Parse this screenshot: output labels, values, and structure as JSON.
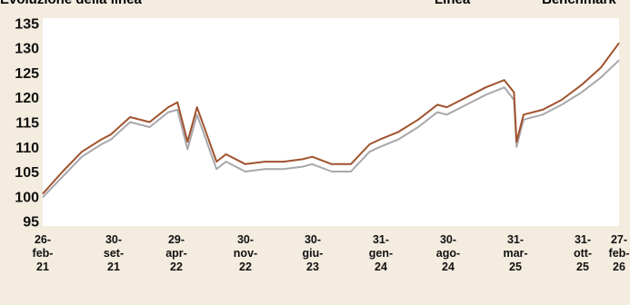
{
  "title": "Evoluzione della linea",
  "chart_data": {
    "type": "line",
    "title": "Evoluzione della linea",
    "xlabel": "",
    "ylabel": "",
    "ylim": [
      94,
      136
    ],
    "yticks": [
      95,
      100,
      105,
      110,
      115,
      120,
      125,
      130,
      135
    ],
    "grid": false,
    "legend_position": "top-right",
    "xtick_labels": [
      [
        "26-",
        "feb-",
        "21"
      ],
      [
        "30-",
        "set-",
        "21"
      ],
      [
        "29-",
        "apr-",
        "22"
      ],
      [
        "30-",
        "nov-",
        "22"
      ],
      [
        "30-",
        "giu-",
        "23"
      ],
      [
        "31-",
        "gen-",
        "24"
      ],
      [
        "30-",
        "ago-",
        "24"
      ],
      [
        "31-",
        "mar-",
        "25"
      ],
      [
        "31-",
        "ott-",
        "25"
      ],
      [
        "27-",
        "feb-",
        "26"
      ]
    ],
    "x_dates": [
      "2021-02-26",
      "2021-04-30",
      "2021-06-30",
      "2021-08-31",
      "2021-09-30",
      "2021-11-30",
      "2022-01-31",
      "2022-03-31",
      "2022-04-29",
      "2022-05-31",
      "2022-06-30",
      "2022-08-31",
      "2022-09-30",
      "2022-11-30",
      "2023-01-31",
      "2023-03-31",
      "2023-05-31",
      "2023-06-30",
      "2023-08-31",
      "2023-10-31",
      "2023-12-29",
      "2024-01-31",
      "2024-03-29",
      "2024-05-31",
      "2024-07-31",
      "2024-08-30",
      "2024-10-31",
      "2024-12-31",
      "2025-02-28",
      "2025-03-31",
      "2025-04-08",
      "2025-04-30",
      "2025-06-30",
      "2025-08-29",
      "2025-10-31",
      "2025-12-31",
      "2026-02-27"
    ],
    "series": [
      {
        "name": "Linea",
        "color": "#a0522d",
        "values": [
          100.5,
          105,
          109,
          111.5,
          112.5,
          116,
          115,
          118,
          119,
          111,
          118,
          107,
          108.5,
          106.5,
          107,
          107,
          107.5,
          108,
          106.5,
          106.5,
          110.5,
          111.5,
          113,
          115.5,
          118.5,
          118,
          120,
          122,
          123.5,
          121,
          111,
          116.5,
          117.5,
          119.5,
          122.5,
          126,
          131
        ]
      },
      {
        "name": "Benchmark",
        "color": "#a8a8ac",
        "values": [
          99.8,
          104,
          108,
          110.5,
          111.5,
          115,
          114,
          117,
          117.5,
          109.5,
          116.5,
          105.5,
          107,
          105,
          105.5,
          105.5,
          106,
          106.5,
          105,
          105,
          109,
          110,
          111.5,
          114,
          117,
          116.5,
          118.5,
          120.5,
          122,
          119.5,
          110,
          115.5,
          116.5,
          118.5,
          121,
          124,
          127.5
        ]
      }
    ]
  }
}
